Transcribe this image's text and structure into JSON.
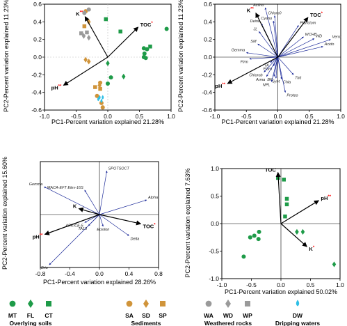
{
  "colors": {
    "overlying_soils": "#1e9b48",
    "sediments": "#d0943a",
    "weathered_rocks": "#9a9a9a",
    "dripping_waters": "#2ebfe6",
    "bio_arrow": "#1c2a99",
    "env_arrow": "#000000",
    "significance": "#ff0000"
  },
  "chart_data": [
    {
      "type": "scatter",
      "title": "",
      "xlabel": "PC1-Percent variation explained 21.28%",
      "ylabel": "PC2-Percent variation explained 11.23%",
      "xlim": [
        -1.0,
        1.0
      ],
      "ylim": [
        -0.6,
        0.6
      ],
      "xticks": [
        -1.0,
        -0.5,
        0.0,
        0.5,
        1.0
      ],
      "yticks": [
        -0.6,
        -0.4,
        -0.2,
        0.0,
        0.2,
        0.4,
        0.6
      ],
      "tick_labels_x": [
        "-1.0",
        "-0.5",
        "0.0",
        "0.5",
        "1.0"
      ],
      "tick_labels_y": [
        "-0.6",
        "-0.4",
        "-0.2",
        "0.0",
        "0.2",
        "0.4",
        "0.6"
      ],
      "env_vectors": [
        {
          "name": "TOC",
          "sig": "*",
          "x": 0.48,
          "y": 0.34
        },
        {
          "name": "K",
          "sig": "**",
          "x": -0.36,
          "y": 0.46
        },
        {
          "name": "pH",
          "sig": "**",
          "x": -0.7,
          "y": -0.32
        }
      ],
      "points": [
        {
          "group": "MT",
          "x": 0.93,
          "y": 0.32
        },
        {
          "group": "MT",
          "x": 0.57,
          "y": 0.1
        },
        {
          "group": "MT",
          "x": 0.62,
          "y": 0.09
        },
        {
          "group": "MT",
          "x": 0.58,
          "y": 0.04
        },
        {
          "group": "MT",
          "x": 0.57,
          "y": 0.0
        },
        {
          "group": "MT",
          "x": 0.6,
          "y": -0.01
        },
        {
          "group": "MT",
          "x": 0.05,
          "y": -0.23
        },
        {
          "group": "MT",
          "x": 0.0,
          "y": -0.3
        },
        {
          "group": "FL",
          "x": 0.25,
          "y": -0.22
        },
        {
          "group": "FL",
          "x": 0.0,
          "y": -0.07
        },
        {
          "group": "CT",
          "x": 0.2,
          "y": 0.29
        },
        {
          "group": "CT",
          "x": 0.67,
          "y": 0.12
        },
        {
          "group": "CT",
          "x": -0.03,
          "y": 0.43
        },
        {
          "group": "SA",
          "x": -0.35,
          "y": 0.52
        },
        {
          "group": "SA",
          "x": -0.12,
          "y": -0.29
        },
        {
          "group": "SA",
          "x": -0.17,
          "y": -0.44
        },
        {
          "group": "SA",
          "x": -0.1,
          "y": -0.52
        },
        {
          "group": "SA",
          "x": -0.08,
          "y": -0.57
        },
        {
          "group": "SD",
          "x": -0.3,
          "y": 0.4
        },
        {
          "group": "SD",
          "x": -0.35,
          "y": -0.03
        },
        {
          "group": "SD",
          "x": -0.3,
          "y": -0.05
        },
        {
          "group": "SD",
          "x": -0.13,
          "y": -0.32
        },
        {
          "group": "SP",
          "x": -0.37,
          "y": 0.35
        },
        {
          "group": "SP",
          "x": -0.2,
          "y": -0.34
        },
        {
          "group": "SP",
          "x": -0.12,
          "y": -0.36
        },
        {
          "group": "WA",
          "x": -0.3,
          "y": 0.54
        },
        {
          "group": "WA",
          "x": -0.37,
          "y": 0.5
        },
        {
          "group": "WD",
          "x": -0.3,
          "y": 0.22
        },
        {
          "group": "WD",
          "x": -0.38,
          "y": 0.24
        },
        {
          "group": "WP",
          "x": -0.42,
          "y": 0.27
        },
        {
          "group": "WP",
          "x": -0.33,
          "y": 0.28
        },
        {
          "group": "DW",
          "x": -0.13,
          "y": -0.46
        },
        {
          "group": "DW",
          "x": -0.1,
          "y": -0.5
        },
        {
          "group": "DW",
          "x": -0.15,
          "y": -0.48
        },
        {
          "group": "DW",
          "x": -0.08,
          "y": -0.46
        }
      ]
    },
    {
      "type": "scatter",
      "title": "",
      "xlabel": "PC1-Percent variation explained 21.28%",
      "ylabel": "PC2-Percent variation explained 11.23%",
      "xlim": [
        -1.0,
        1.0
      ],
      "ylim": [
        -0.6,
        0.6
      ],
      "xticks": [
        -1.0,
        -0.5,
        0.0,
        0.5,
        1.0
      ],
      "yticks": [
        -0.6,
        -0.4,
        -0.2,
        0.0,
        0.2,
        0.4,
        0.6
      ],
      "tick_labels_x": [
        "-1.0",
        "-0.5",
        "0.0",
        "0.5",
        "1.0"
      ],
      "tick_labels_y": [
        "-0.6",
        "-0.4",
        "-0.2",
        "0.0",
        "0.2",
        "0.4",
        "0.6"
      ],
      "env_vectors": [
        {
          "name": "TOC",
          "sig": "*",
          "x": 0.48,
          "y": 0.45
        },
        {
          "name": "K",
          "sig": "**",
          "x": -0.35,
          "y": 0.5
        },
        {
          "name": "pH",
          "sig": "**",
          "x": -0.8,
          "y": -0.3
        }
      ],
      "bio_vectors": [
        {
          "name": "Actino",
          "x": -0.2,
          "y": 0.56
        },
        {
          "name": "Chloro0",
          "x": -0.05,
          "y": 0.47
        },
        {
          "name": "Cyano",
          "x": -0.07,
          "y": 0.41
        },
        {
          "name": "Deino",
          "x": -0.26,
          "y": 0.38
        },
        {
          "name": "JL",
          "x": -0.3,
          "y": 0.29
        },
        {
          "name": "SM",
          "x": -0.32,
          "y": 0.15
        },
        {
          "name": "Gemma",
          "x": -0.5,
          "y": 0.05
        },
        {
          "name": "Firm",
          "x": -0.45,
          "y": -0.02
        },
        {
          "name": "Planctom",
          "x": 0.33,
          "y": 0.36
        },
        {
          "name": "WCHB",
          "x": 0.41,
          "y": 0.23
        },
        {
          "name": "WD",
          "x": 0.58,
          "y": 0.21
        },
        {
          "name": "Verru",
          "x": 0.84,
          "y": 0.2
        },
        {
          "name": "Acido",
          "x": 0.72,
          "y": 0.12
        },
        {
          "name": "TA",
          "x": -0.12,
          "y": -0.06
        },
        {
          "name": "Fibro",
          "x": -0.07,
          "y": -0.1
        },
        {
          "name": "Chlorob",
          "x": -0.22,
          "y": -0.17
        },
        {
          "name": "Arma",
          "x": -0.18,
          "y": -0.22
        },
        {
          "name": "BR",
          "x": -0.06,
          "y": -0.22
        },
        {
          "name": "Synt",
          "x": -0.03,
          "y": -0.24
        },
        {
          "name": "NPL",
          "x": -0.1,
          "y": -0.28
        },
        {
          "name": "Chla",
          "x": 0.06,
          "y": -0.25
        },
        {
          "name": "Tk6",
          "x": 0.25,
          "y": -0.2
        },
        {
          "name": "Proteo",
          "x": 0.12,
          "y": -0.4
        }
      ]
    },
    {
      "type": "scatter",
      "title": "",
      "xlabel": "PC1-Percent variation explained 28.26%",
      "ylabel": "PC2-Percent variation explained 15.60%",
      "xlim": [
        -0.8,
        0.8
      ],
      "ylim": [
        -0.8,
        0.8
      ],
      "xticks": [
        -0.8,
        -0.4,
        0.0,
        0.4,
        0.8
      ],
      "yticks": [],
      "tick_labels_x": [
        "-0.8",
        "-0.4",
        "0.0",
        "0.4",
        "0.8"
      ],
      "tick_labels_y": [],
      "env_vectors": [
        {
          "name": "TOC",
          "sig": "*",
          "x": 0.56,
          "y": -0.14
        },
        {
          "name": "K",
          "sig": "",
          "x": -0.28,
          "y": 0.09
        },
        {
          "name": "pH",
          "sig": "**",
          "x": -0.74,
          "y": -0.3
        }
      ],
      "bio_vectors": [
        {
          "name": "SPOTSOCT",
          "x": 0.1,
          "y": 0.66
        },
        {
          "name": "MACA-EFT Elev-16S",
          "x": -0.2,
          "y": 0.37
        },
        {
          "name": "Gemma",
          "x": -0.75,
          "y": 0.42
        },
        {
          "name": "Alpha",
          "x": 0.64,
          "y": 0.22
        },
        {
          "name": "ARKICE-5",
          "x": -0.2,
          "y": -0.12
        },
        {
          "name": "TA18",
          "x": -0.15,
          "y": -0.17
        },
        {
          "name": "Epsilon",
          "x": 0.05,
          "y": -0.18
        },
        {
          "name": "Delta",
          "x": 0.4,
          "y": -0.32
        },
        {
          "name": "Brio",
          "x": -0.68,
          "y": -0.76
        }
      ]
    },
    {
      "type": "scatter",
      "title": "",
      "xlabel": "PC1-Percent variation explained 50.02%",
      "ylabel": "PC2-Percent variation explained 7.63%",
      "xlim": [
        -1.0,
        1.0
      ],
      "ylim": [
        -1.0,
        1.0
      ],
      "xticks": [
        -1.0,
        -0.5,
        0.0,
        0.5,
        1.0
      ],
      "yticks": [
        -1.0,
        -0.5,
        0.0,
        0.5,
        1.0
      ],
      "tick_labels_x": [
        "-1.0",
        "-0.5",
        "0.0",
        "0.5",
        "1.0"
      ],
      "tick_labels_y": [
        "-1.0",
        "-0.5",
        "0.0",
        "0.5",
        "1.0"
      ],
      "env_vectors": [
        {
          "name": "TOC",
          "sig": "",
          "x": -0.05,
          "y": 0.93
        },
        {
          "name": "pH",
          "sig": "**",
          "x": 0.64,
          "y": 0.42
        },
        {
          "name": "K",
          "sig": "*",
          "x": 0.44,
          "y": -0.42
        }
      ],
      "points": [
        {
          "group": "MT",
          "x": -0.63,
          "y": -0.6
        },
        {
          "group": "MT",
          "x": -0.52,
          "y": -0.25
        },
        {
          "group": "MT",
          "x": -0.45,
          "y": -0.22
        },
        {
          "group": "MT",
          "x": -0.38,
          "y": -0.28
        },
        {
          "group": "MT",
          "x": -0.37,
          "y": -0.15
        },
        {
          "group": "FL",
          "x": 0.27,
          "y": -0.15
        },
        {
          "group": "FL",
          "x": 0.37,
          "y": -0.15
        },
        {
          "group": "FL",
          "x": 0.9,
          "y": -0.74
        },
        {
          "group": "CT",
          "x": -0.05,
          "y": 0.83
        },
        {
          "group": "CT",
          "x": 0.05,
          "y": 0.8
        },
        {
          "group": "CT",
          "x": 0.1,
          "y": 0.45
        },
        {
          "group": "CT",
          "x": 0.1,
          "y": 0.35
        },
        {
          "group": "CT",
          "x": 0.07,
          "y": 0.13
        }
      ]
    }
  ],
  "legend": {
    "groups": [
      {
        "title": "Overlying soils",
        "items": [
          {
            "code": "MT",
            "shape": "circle",
            "color_key": "overlying_soils"
          },
          {
            "code": "FL",
            "shape": "diamond",
            "color_key": "overlying_soils"
          },
          {
            "code": "CT",
            "shape": "square",
            "color_key": "overlying_soils"
          }
        ]
      },
      {
        "title": "Sediments",
        "items": [
          {
            "code": "SA",
            "shape": "circle",
            "color_key": "sediments"
          },
          {
            "code": "SD",
            "shape": "diamond",
            "color_key": "sediments"
          },
          {
            "code": "SP",
            "shape": "square",
            "color_key": "sediments"
          }
        ]
      },
      {
        "title": "Weathered rocks",
        "items": [
          {
            "code": "WA",
            "shape": "circle",
            "color_key": "weathered_rocks"
          },
          {
            "code": "WD",
            "shape": "diamond",
            "color_key": "weathered_rocks"
          },
          {
            "code": "WP",
            "shape": "square",
            "color_key": "weathered_rocks"
          }
        ]
      },
      {
        "title": "Dripping waters",
        "items": [
          {
            "code": "DW",
            "shape": "drop",
            "color_key": "dripping_waters"
          }
        ]
      }
    ]
  }
}
